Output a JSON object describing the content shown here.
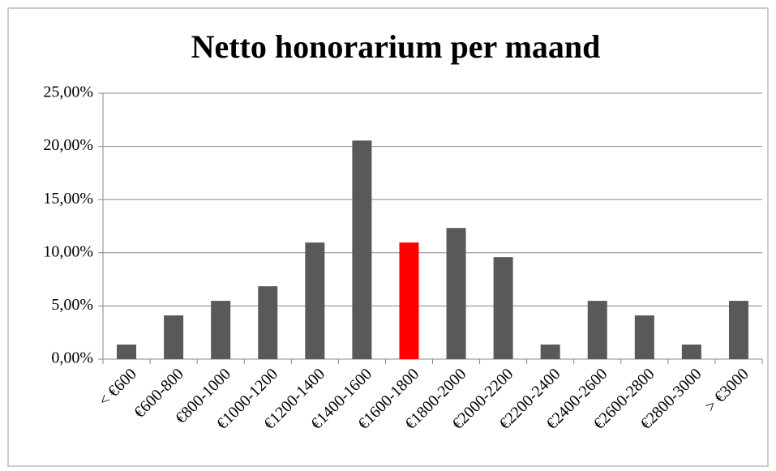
{
  "chart_data": {
    "type": "bar",
    "title": "Netto honorarium per maand",
    "categories": [
      "< €600",
      "€600-800",
      "€800-1000",
      "€1000-1200",
      "€1200-1400",
      "€1400-1600",
      "€1600-1800",
      "€1800-2000",
      "€2000-2200",
      "€2200-2400",
      "€2400-2600",
      "€2600-2800",
      "€2800-3000",
      "> €3000"
    ],
    "values": [
      1.37,
      4.11,
      5.48,
      6.85,
      10.96,
      20.55,
      10.96,
      12.33,
      9.59,
      1.37,
      5.48,
      4.11,
      1.37,
      5.48
    ],
    "colors": [
      "#595959",
      "#595959",
      "#595959",
      "#595959",
      "#595959",
      "#595959",
      "#ff0000",
      "#595959",
      "#595959",
      "#595959",
      "#595959",
      "#595959",
      "#595959",
      "#595959"
    ],
    "ylim": [
      0,
      25
    ],
    "yticks": [
      {
        "value": 0,
        "label": "0,00%"
      },
      {
        "value": 5,
        "label": "5,00%"
      },
      {
        "value": 10,
        "label": "10,00%"
      },
      {
        "value": 15,
        "label": "15,00%"
      },
      {
        "value": 20,
        "label": "20,00%"
      },
      {
        "value": 25,
        "label": "25,00%"
      }
    ],
    "grid": true
  }
}
